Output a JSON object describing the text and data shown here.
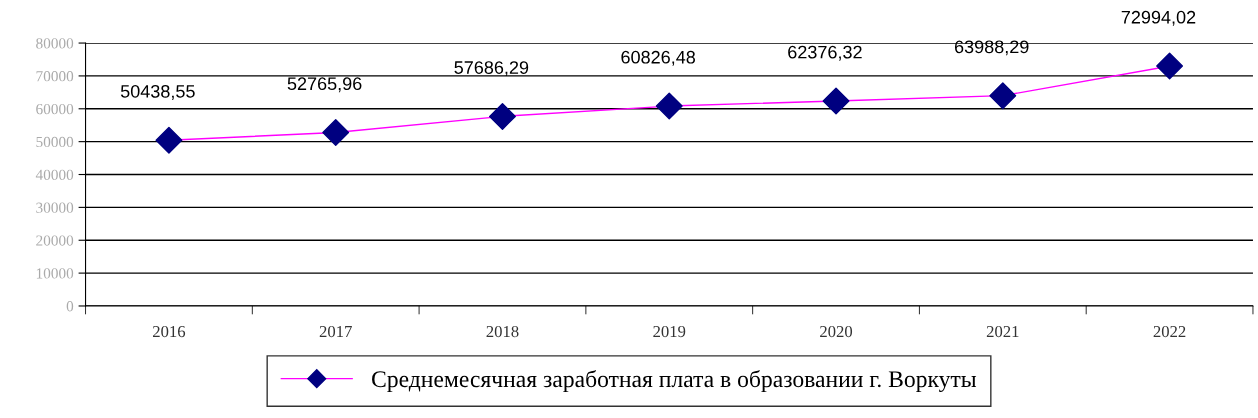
{
  "chart_data": {
    "type": "line",
    "categories": [
      "2016",
      "2017",
      "2018",
      "2019",
      "2020",
      "2021",
      "2022"
    ],
    "series": [
      {
        "name": "Среднемесячная заработная плата в образовании г. Воркуты",
        "color": "#ff00ff",
        "colors": [
          "#000080",
          "#000080",
          "#000080",
          "#000080",
          "#000080",
          "#000080",
          "#000080"
        ],
        "values": [
          50438.55,
          52765.96,
          57686.29,
          60826.48,
          62376.32,
          63988.29,
          72994.02
        ],
        "value_labels": [
          "50438,55",
          "52765,96",
          "57686,29",
          "60826,48",
          "62376,32",
          "63988,29",
          "72994,02"
        ]
      }
    ],
    "ylim": [
      0,
      80000
    ],
    "yticks": [
      0,
      10000,
      20000,
      30000,
      40000,
      50000,
      60000,
      70000,
      80000
    ],
    "grid": "y",
    "legend": "bottom",
    "marker": "diamond",
    "line_style": "solid"
  }
}
